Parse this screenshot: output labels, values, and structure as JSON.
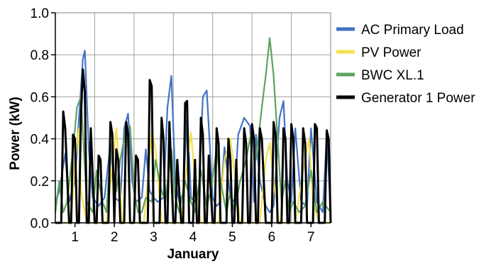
{
  "chart_data": {
    "type": "line",
    "xlabel": "January",
    "ylabel": "Power (kW)",
    "xlim": [
      0.5,
      7.5
    ],
    "ylim": [
      0,
      1.0
    ],
    "x_ticks": [
      "1",
      "2",
      "3",
      "4",
      "5",
      "6",
      "7"
    ],
    "y_ticks": [
      "0.0",
      "0.2",
      "0.4",
      "0.6",
      "0.8",
      "1.0"
    ],
    "grid": true,
    "legend_position": "right",
    "series": [
      {
        "name": "AC Primary Load",
        "color": "#4472c4",
        "x": [
          0.5,
          0.6,
          0.75,
          0.85,
          1.0,
          1.1,
          1.2,
          1.25,
          1.35,
          1.45,
          1.6,
          1.75,
          1.9,
          2.0,
          2.15,
          2.25,
          2.35,
          2.45,
          2.55,
          2.7,
          2.8,
          2.9,
          3.0,
          3.1,
          3.25,
          3.35,
          3.45,
          3.55,
          3.65,
          3.75,
          3.85,
          3.95,
          4.05,
          4.15,
          4.25,
          4.35,
          4.5,
          4.6,
          4.7,
          4.8,
          4.95,
          5.05,
          5.15,
          5.3,
          5.45,
          5.55,
          5.6,
          5.7,
          5.85,
          5.95,
          6.05,
          6.2,
          6.3,
          6.4,
          6.5,
          6.6,
          6.75,
          6.9,
          7.0,
          7.15,
          7.3,
          7.4,
          7.5
        ],
        "y": [
          0.1,
          0.15,
          0.33,
          0.1,
          0.2,
          0.5,
          0.78,
          0.82,
          0.35,
          0.12,
          0.08,
          0.12,
          0.38,
          0.12,
          0.1,
          0.45,
          0.52,
          0.2,
          0.1,
          0.12,
          0.35,
          0.15,
          0.12,
          0.1,
          0.12,
          0.55,
          0.7,
          0.2,
          0.1,
          0.14,
          0.52,
          0.12,
          0.1,
          0.15,
          0.6,
          0.63,
          0.12,
          0.08,
          0.1,
          0.36,
          0.12,
          0.1,
          0.42,
          0.5,
          0.46,
          0.1,
          0.42,
          0.2,
          0.08,
          0.05,
          0.08,
          0.5,
          0.58,
          0.2,
          0.1,
          0.45,
          0.1,
          0.08,
          0.45,
          0.1,
          0.05,
          0.42,
          0.05
        ]
      },
      {
        "name": "PV Power",
        "color": "#f4e04d",
        "x": [
          0.5,
          0.9,
          1.0,
          1.1,
          1.15,
          1.3,
          1.8,
          1.95,
          2.05,
          2.2,
          2.75,
          2.85,
          2.95,
          3.05,
          3.2,
          3.7,
          3.85,
          3.95,
          4.05,
          4.2,
          4.65,
          4.8,
          4.95,
          5.05,
          5.2,
          5.7,
          5.85,
          5.95,
          6.05,
          6.2,
          6.6,
          6.8,
          6.95,
          7.05,
          7.2,
          7.5
        ],
        "y": [
          0,
          0,
          0.3,
          0.45,
          0.15,
          0,
          0,
          0.28,
          0.45,
          0,
          0,
          0.2,
          0.43,
          0.35,
          0,
          0,
          0.28,
          0.43,
          0.2,
          0,
          0,
          0.3,
          0.4,
          0.25,
          0,
          0,
          0.3,
          0.38,
          0.2,
          0,
          0,
          0.25,
          0.4,
          0.1,
          0,
          0
        ]
      },
      {
        "name": "BWC XL.1",
        "color": "#5fa35f",
        "x": [
          0.5,
          0.6,
          0.7,
          0.8,
          0.95,
          1.05,
          1.15,
          1.3,
          1.45,
          1.55,
          1.7,
          1.8,
          1.9,
          2.05,
          2.15,
          2.3,
          2.4,
          2.5,
          2.6,
          2.7,
          2.8,
          2.95,
          3.05,
          3.2,
          3.3,
          3.45,
          3.55,
          3.65,
          3.8,
          3.95,
          4.05,
          4.2,
          4.35,
          4.45,
          4.6,
          4.7,
          4.85,
          4.95,
          5.05,
          5.2,
          5.35,
          5.5,
          5.6,
          5.75,
          5.85,
          5.95,
          6.05,
          6.15,
          6.25,
          6.35,
          6.45,
          6.55,
          6.7,
          6.85,
          7.0,
          7.15,
          7.3,
          7.5
        ],
        "y": [
          0.05,
          0.2,
          0.05,
          0.1,
          0.35,
          0.55,
          0.6,
          0.1,
          0.05,
          0.25,
          0.1,
          0.05,
          0.35,
          0.15,
          0.3,
          0.45,
          0.46,
          0.15,
          0.05,
          0.05,
          0.12,
          0.1,
          0.3,
          0.15,
          0.1,
          0.35,
          0.12,
          0.05,
          0.2,
          0.1,
          0.05,
          0.25,
          0.08,
          0.15,
          0.35,
          0.2,
          0.05,
          0.15,
          0.05,
          0.2,
          0.3,
          0.45,
          0.3,
          0.55,
          0.7,
          0.88,
          0.7,
          0.4,
          0.1,
          0.2,
          0.05,
          0.1,
          0.05,
          0.08,
          0.25,
          0.05,
          0.1,
          0.05
        ]
      },
      {
        "name": "Generator 1 Power",
        "color": "#000000",
        "x": [
          0.5,
          0.65,
          0.7,
          0.75,
          0.85,
          0.9,
          0.95,
          1.0,
          1.05,
          1.1,
          1.15,
          1.2,
          1.25,
          1.3,
          1.35,
          1.4,
          1.5,
          1.55,
          1.6,
          1.65,
          1.7,
          1.75,
          1.85,
          1.9,
          1.95,
          2.0,
          2.05,
          2.1,
          2.15,
          2.25,
          2.3,
          2.35,
          2.4,
          2.5,
          2.55,
          2.6,
          2.65,
          2.7,
          2.75,
          2.85,
          2.9,
          2.95,
          3.0,
          3.05,
          3.15,
          3.2,
          3.25,
          3.3,
          3.35,
          3.4,
          3.5,
          3.55,
          3.6,
          3.7,
          3.75,
          3.8,
          3.85,
          3.9,
          4.0,
          4.05,
          4.1,
          4.15,
          4.2,
          4.25,
          4.3,
          4.35,
          4.4,
          4.5,
          4.55,
          4.6,
          4.65,
          4.7,
          4.75,
          4.85,
          4.9,
          4.95,
          5.0,
          5.05,
          5.1,
          5.15,
          5.25,
          5.3,
          5.35,
          5.4,
          5.45,
          5.5,
          5.55,
          5.6,
          5.65,
          5.7,
          5.75,
          5.85,
          5.9,
          6.0,
          6.05,
          6.1,
          6.15,
          6.25,
          6.3,
          6.35,
          6.4,
          6.45,
          6.5,
          6.55,
          6.6,
          6.7,
          6.75,
          6.8,
          6.85,
          6.9,
          7.05,
          7.1,
          7.15,
          7.2,
          7.25,
          7.3,
          7.35,
          7.4,
          7.45,
          7.5
        ],
        "y": [
          0,
          0,
          0.53,
          0.45,
          0,
          0,
          0.42,
          0.4,
          0,
          0,
          0.5,
          0.73,
          0.62,
          0,
          0,
          0.45,
          0,
          0,
          0.32,
          0.3,
          0,
          0,
          0,
          0.48,
          0.42,
          0,
          0.35,
          0.3,
          0,
          0,
          0.48,
          0.42,
          0,
          0,
          0.32,
          0.3,
          0,
          0,
          0,
          0,
          0.68,
          0.65,
          0,
          0,
          0,
          0.5,
          0.4,
          0,
          0,
          0.48,
          0,
          0,
          0.3,
          0,
          0,
          0.57,
          0.58,
          0,
          0,
          0.3,
          0,
          0,
          0.5,
          0.42,
          0,
          0,
          0.32,
          0,
          0,
          0.45,
          0.38,
          0,
          0,
          0,
          0.4,
          0.3,
          0,
          0,
          0.3,
          0,
          0,
          0.45,
          0.38,
          0,
          0,
          0.47,
          0.4,
          0,
          0,
          0.45,
          0.4,
          0,
          0,
          0,
          0.48,
          0.42,
          0,
          0,
          0.45,
          0.4,
          0,
          0,
          0.47,
          0.4,
          0,
          0,
          0,
          0.45,
          0.38,
          0,
          0,
          0.47,
          0.45,
          0,
          0,
          0,
          0,
          0.44,
          0.4,
          0
        ]
      }
    ]
  }
}
